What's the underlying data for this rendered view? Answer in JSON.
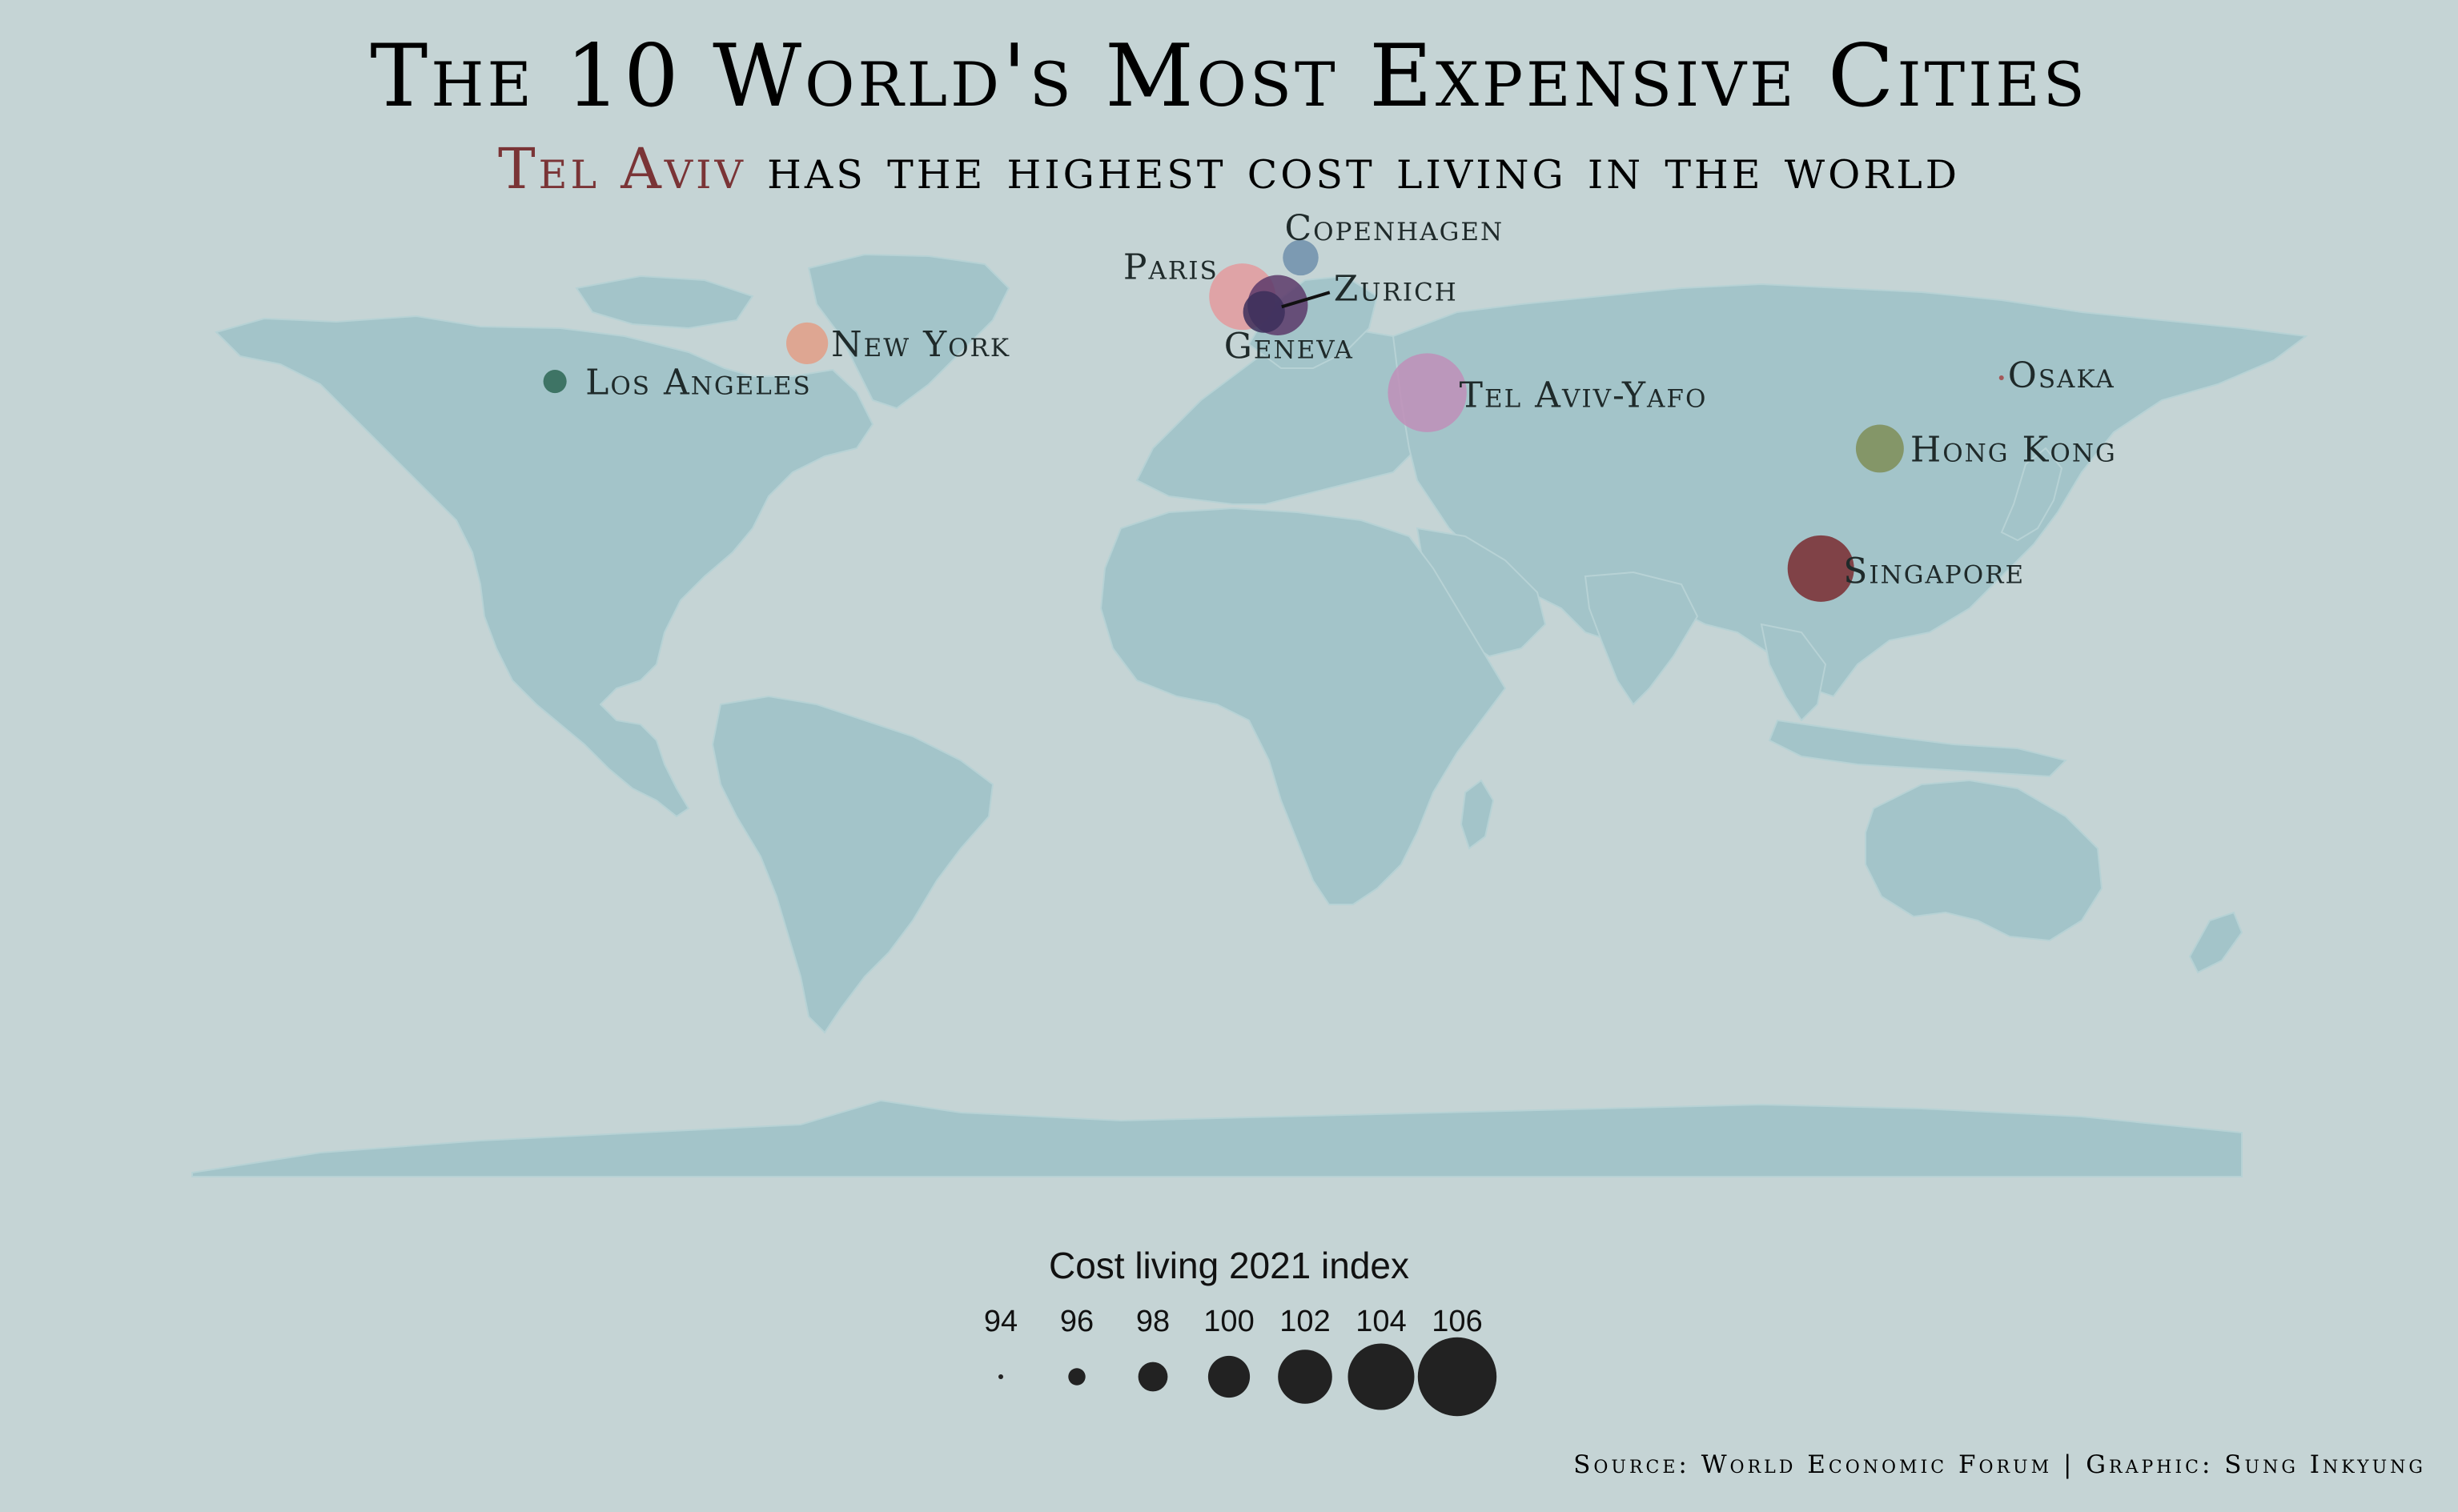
{
  "title": "The 10 World's Most Expensive Cities",
  "subtitle": {
    "highlight": "Tel Aviv",
    "rest": " has the highest cost living in the world",
    "highlight_color": "#7a3436"
  },
  "legend": {
    "title": "Cost living  2021 index",
    "values": [
      94,
      96,
      98,
      100,
      102,
      104,
      106
    ],
    "labels": [
      "94",
      "96",
      "98",
      "100",
      "102",
      "104",
      "106"
    ]
  },
  "source": "Source: World Economic Forum  | Graphic: Sung Inkyung",
  "colors": {
    "background": "#c5d4d5",
    "land": "#a3c4c9",
    "legend_dot": "#222222"
  },
  "cities": [
    {
      "name": "Tel Aviv-Yafo",
      "lon": 34.78,
      "lat": 32.08,
      "index": 106,
      "color": "#c08fb8"
    },
    {
      "name": "Paris",
      "lon": 2.35,
      "lat": 48.86,
      "index": 104,
      "color": "#e39a9e"
    },
    {
      "name": "Singapore",
      "lon": 103.82,
      "lat": 1.35,
      "index": 104,
      "color": "#7a2b30"
    },
    {
      "name": "Zurich",
      "lon": 8.54,
      "lat": 47.37,
      "index": 103,
      "color": "#5c3a6a"
    },
    {
      "name": "Hong Kong",
      "lon": 114.17,
      "lat": 22.32,
      "index": 101,
      "color": "#7f8e57"
    },
    {
      "name": "New York",
      "lon": -74.0,
      "lat": 40.71,
      "index": 100,
      "color": "#e29e86"
    },
    {
      "name": "Geneva",
      "lon": 6.14,
      "lat": 46.2,
      "index": 100,
      "color": "#3c2f5a"
    },
    {
      "name": "Copenhagen",
      "lon": 12.57,
      "lat": 55.68,
      "index": 99,
      "color": "#6f8fab"
    },
    {
      "name": "Los Angeles",
      "lon": -118.24,
      "lat": 34.05,
      "index": 97,
      "color": "#2d6653"
    },
    {
      "name": "Osaka",
      "lon": 135.5,
      "lat": 34.69,
      "index": 94,
      "color": "#a34545"
    }
  ]
}
